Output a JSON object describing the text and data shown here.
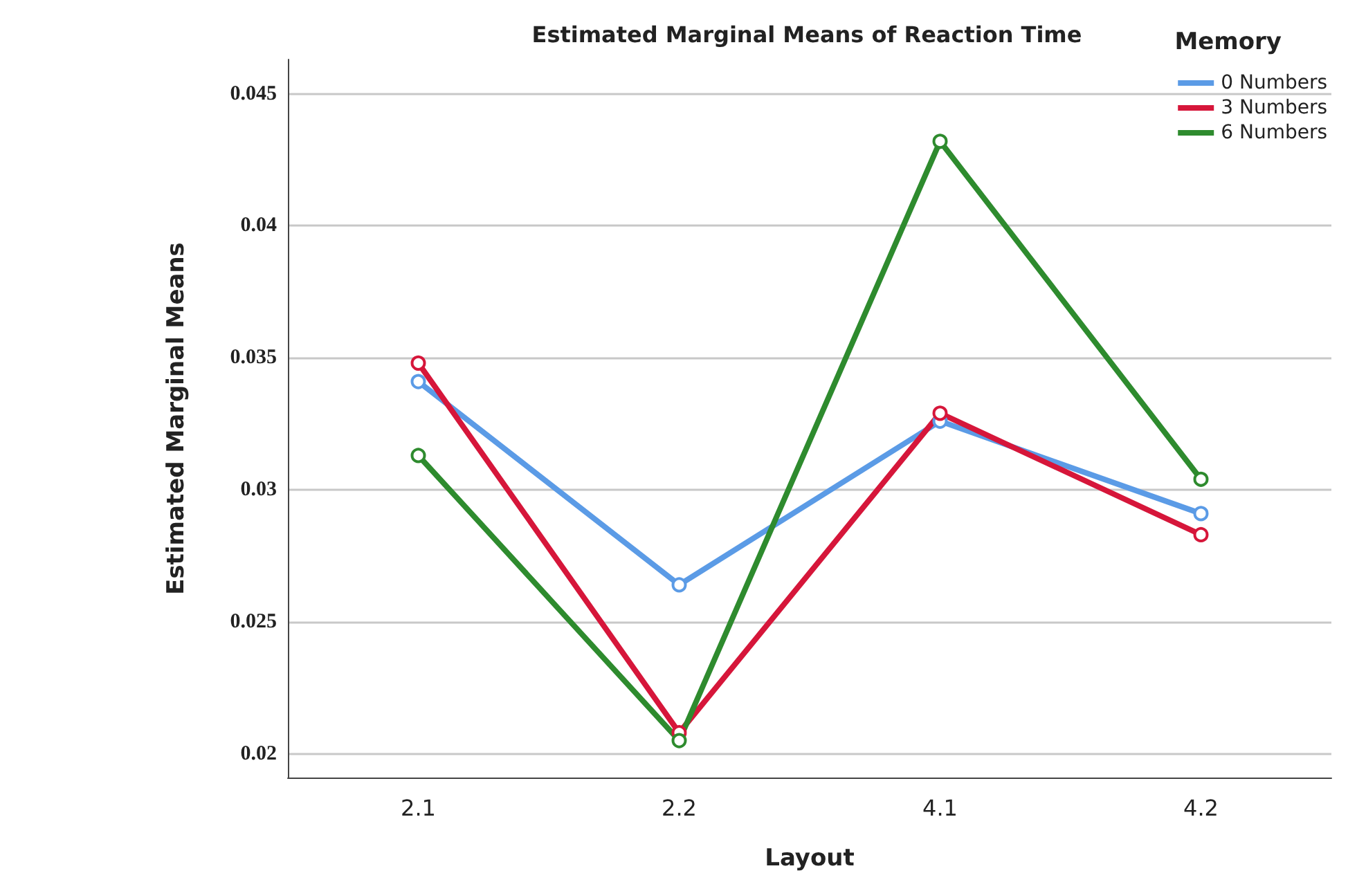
{
  "chart_data": {
    "type": "line",
    "title": "Estimated Marginal Means of Reaction Time",
    "xlabel": "Layout",
    "ylabel": "Estimated Marginal Means",
    "legend_title": "Memory",
    "categories": [
      "2.1",
      "2.2",
      "4.1",
      "4.2"
    ],
    "series": [
      {
        "name": "0 Numbers",
        "color": "#5b9be6",
        "values": [
          0.0341,
          0.0264,
          0.0326,
          0.0291
        ]
      },
      {
        "name": "3 Numbers",
        "color": "#d6163a",
        "values": [
          0.0348,
          0.0208,
          0.0329,
          0.0283
        ]
      },
      {
        "name": "6 Numbers",
        "color": "#2e8b2e",
        "values": [
          0.0313,
          0.0205,
          0.0432,
          0.0304
        ]
      }
    ],
    "ylim": [
      0.0191,
      0.0463
    ],
    "yticks": [
      0.02,
      0.025,
      0.03,
      0.035,
      0.04,
      0.045
    ],
    "grid": "y",
    "legend": "top right",
    "marker": "circle",
    "line_style": "solid"
  }
}
